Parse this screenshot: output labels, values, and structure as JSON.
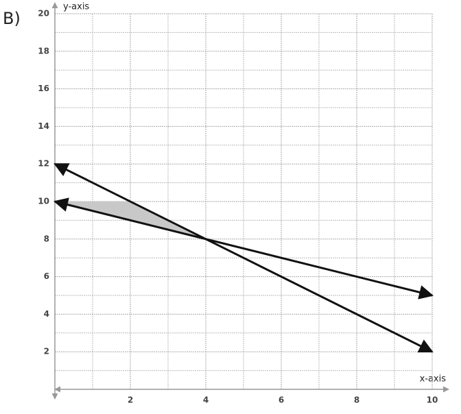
{
  "label": "B)",
  "chart_data": {
    "type": "line",
    "x_label": "x-axis",
    "y_label": "y-axis",
    "xlim": [
      0,
      10
    ],
    "ylim": [
      0,
      20
    ],
    "xticks": [
      2,
      4,
      6,
      8,
      10
    ],
    "yticks": [
      2,
      4,
      6,
      8,
      10,
      12,
      14,
      16,
      18,
      20
    ],
    "grid": true,
    "series": [
      {
        "color": "#111111",
        "x": [
          0,
          10
        ],
        "values": [
          12,
          2
        ]
      },
      {
        "color": "#111111",
        "x": [
          0,
          10
        ],
        "values": [
          10,
          5
        ]
      }
    ],
    "shaded_region": {
      "color": "#c8c8c8",
      "x": [
        0,
        2,
        4
      ],
      "values": [
        10,
        10,
        8
      ]
    }
  }
}
